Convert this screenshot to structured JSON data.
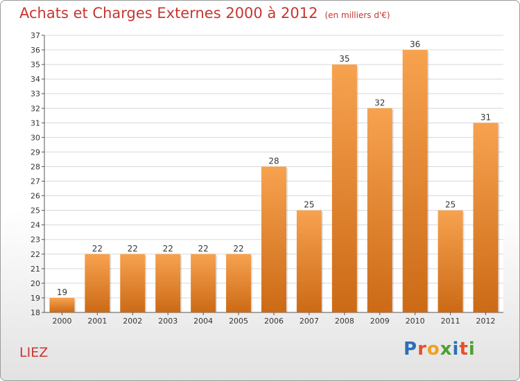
{
  "header": {
    "title": "Achats et Charges Externes 2000 à 2012",
    "subtitle": "(en milliers d'€)"
  },
  "footer": {
    "place": "LIEZ"
  },
  "logo": {
    "letters": [
      "P",
      "r",
      "o",
      "x",
      "i",
      "t",
      "i"
    ],
    "colors": [
      "#2c6fb7",
      "#e5502a",
      "#f0a020",
      "#4ea033",
      "#2c6fb7",
      "#e5502a",
      "#4ea033"
    ]
  },
  "colors": {
    "bar_top": "#f7a24f",
    "bar_bottom": "#cc6a16",
    "grid": "#d8d8d8",
    "title": "#c8352f"
  },
  "chart_data": {
    "type": "bar",
    "title": "Achats et Charges Externes 2000 à 2012",
    "subtitle": "(en milliers d'€)",
    "categories": [
      "2000",
      "2001",
      "2002",
      "2003",
      "2004",
      "2005",
      "2006",
      "2007",
      "2008",
      "2009",
      "2010",
      "2011",
      "2012"
    ],
    "values": [
      19,
      22,
      22,
      22,
      22,
      22,
      28,
      25,
      35,
      32,
      36,
      25,
      31
    ],
    "ylim": [
      18,
      37
    ],
    "yticks": [
      18,
      19,
      20,
      21,
      22,
      23,
      24,
      25,
      26,
      27,
      28,
      29,
      30,
      31,
      32,
      33,
      34,
      35,
      36,
      37
    ],
    "grid": true,
    "xlabel": "",
    "ylabel": ""
  }
}
